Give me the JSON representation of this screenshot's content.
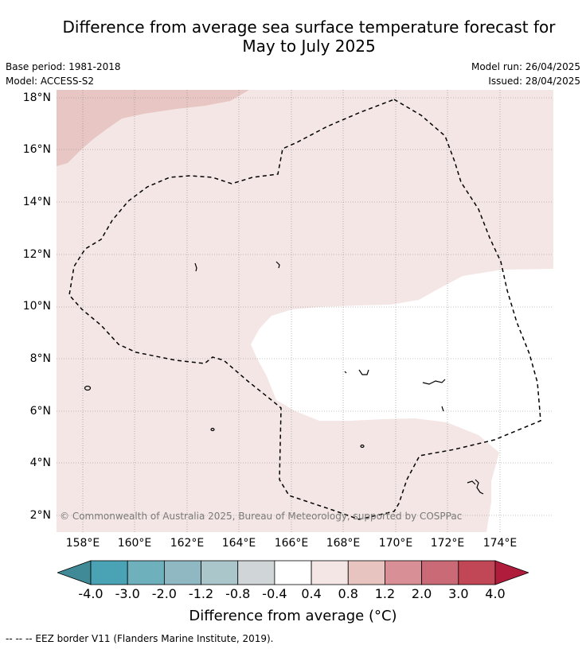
{
  "title_line1": "Difference from average sea surface temperature forecast for",
  "title_line2": "May to July 2025",
  "base_period": "Base period: 1981-2018",
  "model": "Model: ACCESS-S2",
  "model_run": "Model run: 26/04/2025",
  "issued": "Issued: 28/04/2025",
  "lat_labels": [
    "18°N",
    "16°N",
    "14°N",
    "12°N",
    "10°N",
    "8°N",
    "6°N",
    "4°N",
    "2°N"
  ],
  "lon_labels": [
    "158°E",
    "160°E",
    "162°E",
    "164°E",
    "166°E",
    "168°E",
    "170°E",
    "172°E",
    "174°E"
  ],
  "copyright": "© Commonwealth of Australia 2025, Bureau of Meteorology, supported by COSPPac",
  "colorbar": {
    "ticks": [
      "-4.0",
      "-3.0",
      "-2.0",
      "-1.2",
      "-0.8",
      "-0.4",
      "0.4",
      "0.8",
      "1.2",
      "2.0",
      "3.0",
      "4.0"
    ],
    "colors": [
      "#3f8a96",
      "#4aa3b4",
      "#6fb0bd",
      "#8fb8c3",
      "#aac6cb",
      "#d0d6d8",
      "#ffffff",
      "#f3e6e5",
      "#e8c4c1",
      "#d88f96",
      "#c96a76",
      "#c14757",
      "#b01c3b"
    ],
    "title": "Difference from average (°C)"
  },
  "footnote": "--  --  -- EEZ border V11 (Flanders Marine Institute, 2019).",
  "map_colors": {
    "base": "#f4e6e5",
    "warm": "#e8c6c3",
    "neutral": "#ffffff"
  }
}
